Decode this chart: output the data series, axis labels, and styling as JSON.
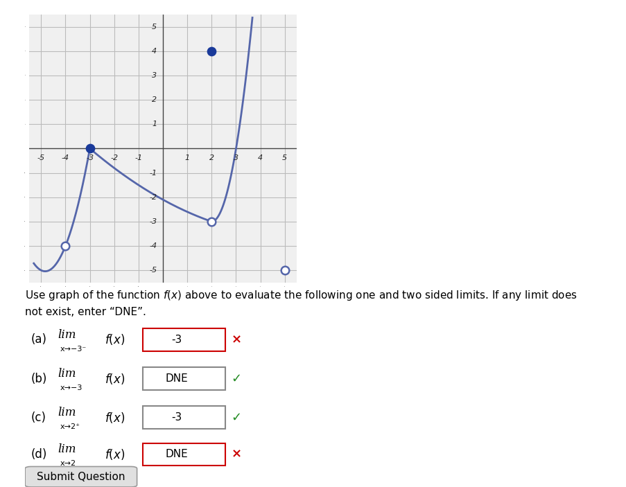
{
  "xlim": [
    -5.5,
    5.5
  ],
  "ylim": [
    -5.5,
    5.5
  ],
  "xticks": [
    -5,
    -4,
    -3,
    -2,
    -1,
    1,
    2,
    3,
    4,
    5
  ],
  "yticks": [
    -5,
    -4,
    -3,
    -2,
    -1,
    1,
    2,
    3,
    4,
    5
  ],
  "curve_color": "#5566aa",
  "dot_color": "#1a3a9a",
  "grid_color": "#bbbbbb",
  "open_circles": [
    [
      -4,
      -4
    ],
    [
      2,
      -3
    ],
    [
      5,
      -5
    ]
  ],
  "filled_circles": [
    [
      -3,
      0
    ],
    [
      2,
      4
    ]
  ],
  "fig_width": 9.04,
  "fig_height": 7.03,
  "graph_bg": "#f0f0f0",
  "qa_lines": [
    {
      "label": "(a)",
      "sub_text": "x→−3⁻",
      "answer": "-3",
      "symbol": "×",
      "box_color": "#cc0000",
      "symbol_color": "#cc0000",
      "correct": false
    },
    {
      "label": "(b)",
      "sub_text": "x→−3",
      "answer": "DNE",
      "symbol": "✓",
      "box_color": "#888888",
      "symbol_color": "#228b22",
      "correct": true
    },
    {
      "label": "(c)",
      "sub_text": "x→2⁺",
      "answer": "-3",
      "symbol": "✓",
      "box_color": "#888888",
      "symbol_color": "#228b22",
      "correct": true
    },
    {
      "label": "(d)",
      "sub_text": "x→2",
      "answer": "DNE",
      "symbol": "×",
      "box_color": "#cc0000",
      "symbol_color": "#cc0000",
      "correct": false
    }
  ],
  "submit_text": "Submit Question"
}
